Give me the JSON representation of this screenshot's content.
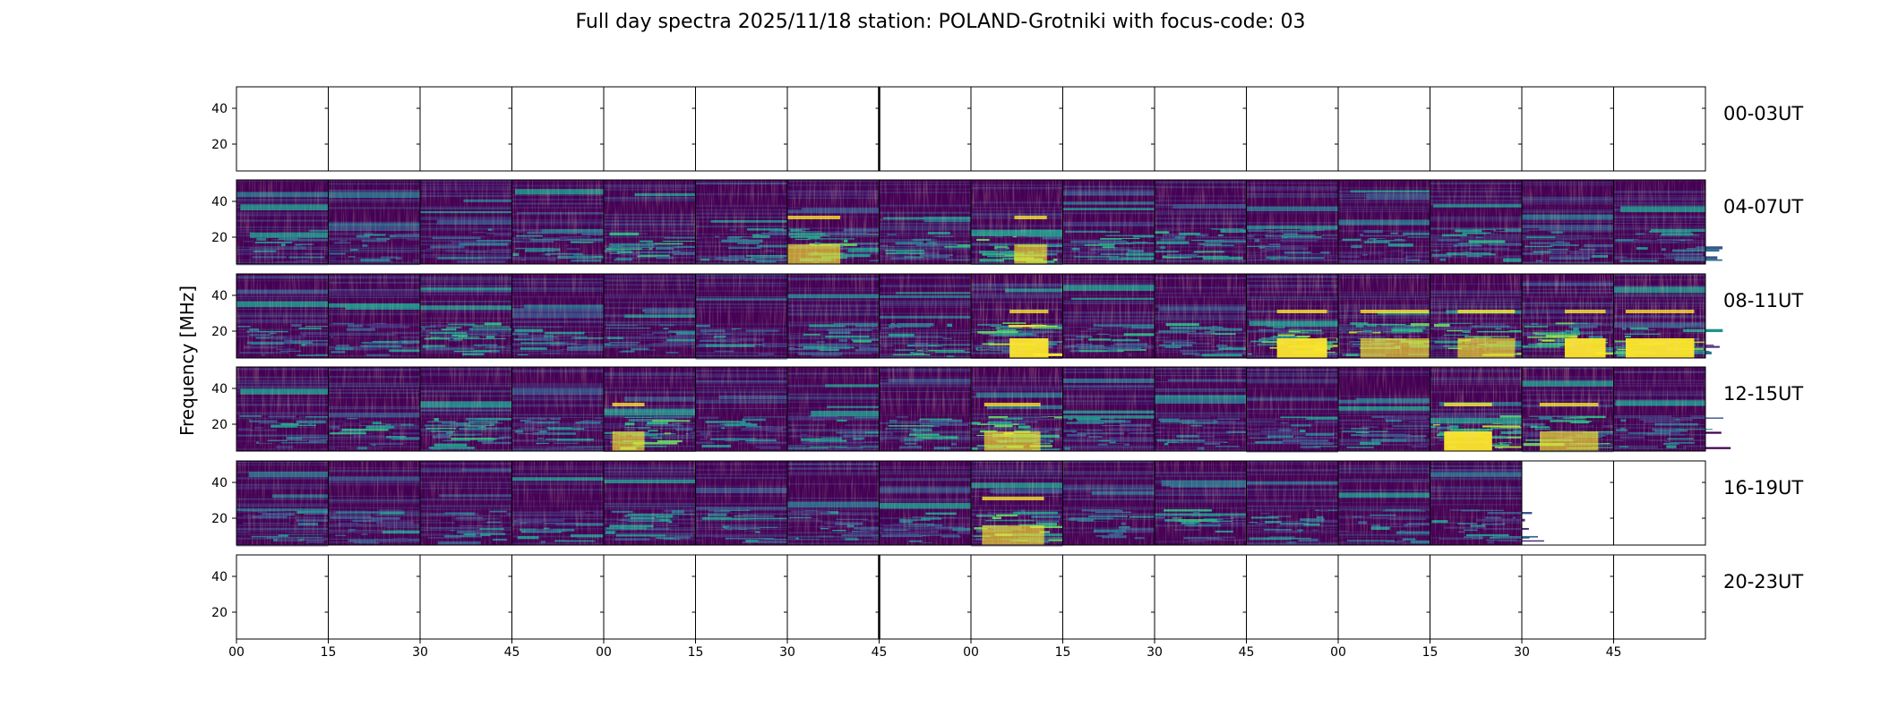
{
  "chart_data": {
    "type": "heatmap",
    "title": "Full day spectra 2025/11/18 station: POLAND-Grotniki with focus-code: 03",
    "ylabel": "Frequency [MHz]",
    "xlabel": "",
    "y_ticks": [
      "20",
      "40"
    ],
    "y_range_mhz": [
      5,
      52
    ],
    "x_ticks": [
      "00",
      "15",
      "30",
      "45",
      "00",
      "15",
      "30",
      "45",
      "00",
      "15",
      "30",
      "45",
      "00",
      "15",
      "30",
      "45"
    ],
    "minutes_per_panel": 15,
    "colormap": "viridis",
    "rows": [
      {
        "label": "00-03UT",
        "panels": [
          0,
          0,
          0,
          0,
          0,
          0,
          0,
          0,
          0,
          0,
          0,
          0,
          0,
          0,
          0,
          0
        ]
      },
      {
        "label": "04-07UT",
        "panels": [
          1,
          1,
          1,
          1,
          1,
          1,
          1,
          1,
          1,
          1,
          1,
          1,
          1,
          1,
          1,
          1
        ]
      },
      {
        "label": "08-11UT",
        "panels": [
          1,
          1,
          1,
          1,
          1,
          1,
          1,
          1,
          1,
          1,
          1,
          1,
          1,
          1,
          1,
          1
        ]
      },
      {
        "label": "12-15UT",
        "panels": [
          1,
          1,
          1,
          1,
          1,
          1,
          1,
          1,
          1,
          1,
          1,
          1,
          1,
          1,
          1,
          1
        ]
      },
      {
        "label": "16-19UT",
        "panels": [
          1,
          1,
          1,
          1,
          1,
          1,
          1,
          1,
          1,
          1,
          1,
          1,
          1,
          1,
          0,
          0
        ]
      },
      {
        "label": "20-23UT",
        "panels": [
          0,
          0,
          0,
          0,
          0,
          0,
          0,
          0,
          0,
          0,
          0,
          0,
          0,
          0,
          0,
          0
        ]
      }
    ],
    "activity": [
      [
        0,
        0,
        0,
        0,
        0,
        0,
        0,
        0,
        0,
        0,
        0,
        0,
        0,
        0,
        0,
        0
      ],
      [
        0.3,
        0.2,
        0.2,
        0.4,
        0.5,
        0.4,
        0.6,
        0.4,
        0.6,
        0.4,
        0.4,
        0.3,
        0.3,
        0.4,
        0.3,
        0.3
      ],
      [
        0.4,
        0.3,
        0.5,
        0.3,
        0.3,
        0.3,
        0.4,
        0.4,
        0.9,
        0.5,
        0.5,
        0.8,
        0.7,
        0.7,
        0.8,
        0.9
      ],
      [
        0.4,
        0.4,
        0.5,
        0.3,
        0.6,
        0.3,
        0.3,
        0.5,
        0.7,
        0.3,
        0.3,
        0.3,
        0.3,
        0.8,
        0.6,
        0.3
      ],
      [
        0.3,
        0.3,
        0.3,
        0.3,
        0.3,
        0.3,
        0.3,
        0.3,
        0.6,
        0.3,
        0.4,
        0.3,
        0.3,
        0.3,
        0,
        0
      ],
      [
        0,
        0,
        0,
        0,
        0,
        0,
        0,
        0,
        0,
        0,
        0,
        0,
        0,
        0,
        0,
        0
      ]
    ]
  }
}
